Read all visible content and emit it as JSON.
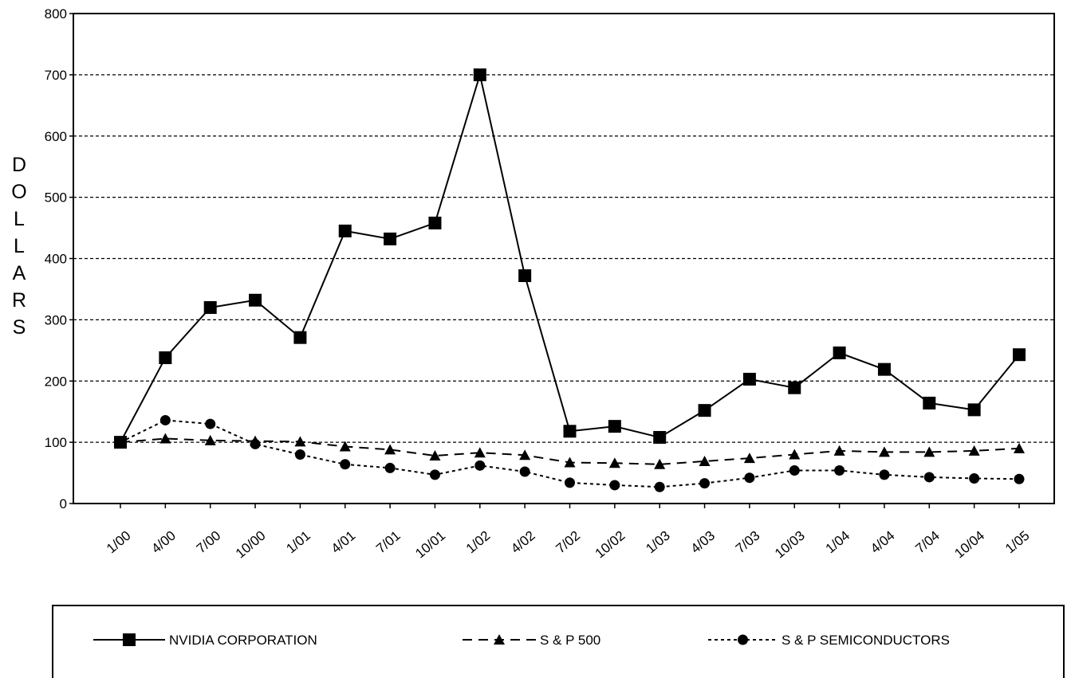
{
  "chart_data": {
    "type": "line",
    "title": "",
    "xlabel": "",
    "ylabel": "DOLLARS",
    "ylim": [
      0,
      800
    ],
    "yticks": [
      0,
      100,
      200,
      300,
      400,
      500,
      600,
      700,
      800
    ],
    "grid": "horizontal dashed",
    "legend_position": "bottom",
    "categories": [
      "1/00",
      "4/00",
      "7/00",
      "10/00",
      "1/01",
      "4/01",
      "7/01",
      "10/01",
      "1/02",
      "4/02",
      "7/02",
      "10/02",
      "1/03",
      "4/03",
      "7/03",
      "10/03",
      "1/04",
      "4/04",
      "7/04",
      "10/04",
      "1/05"
    ],
    "series": [
      {
        "name": "NVIDIA CORPORATION",
        "marker": "square",
        "line": "solid",
        "values": [
          100,
          238,
          320,
          332,
          271,
          445,
          432,
          458,
          700,
          372,
          118,
          126,
          108,
          152,
          203,
          189,
          246,
          219,
          164,
          153,
          243
        ]
      },
      {
        "name": "S & P 500",
        "marker": "triangle",
        "line": "dashed",
        "values": [
          100,
          106,
          103,
          102,
          101,
          93,
          88,
          78,
          83,
          79,
          67,
          66,
          64,
          69,
          74,
          80,
          86,
          84,
          84,
          86,
          90
        ]
      },
      {
        "name": "S & P SEMICONDUCTORS",
        "marker": "circle",
        "line": "dotted",
        "values": [
          100,
          136,
          130,
          97,
          80,
          64,
          58,
          47,
          62,
          52,
          34,
          30,
          27,
          33,
          42,
          54,
          54,
          47,
          43,
          41,
          40
        ]
      }
    ]
  }
}
